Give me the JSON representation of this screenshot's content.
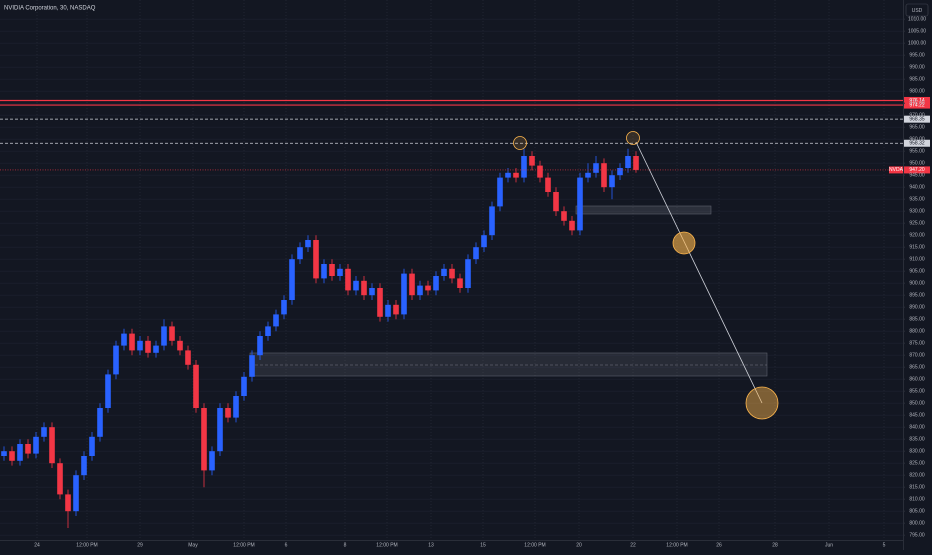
{
  "chart_data": {
    "type": "candlestick",
    "title": "NVIDIA Corporation, 30, NASDAQ",
    "currency": "USD",
    "symbol": "NVDA",
    "up_color": "#2962ff",
    "down_color": "#f23645",
    "grid": true,
    "xlim": [
      -0.5,
      112.375
    ],
    "ylim": [
      793,
      1018
    ],
    "xticks": [
      {
        "value": 4.125,
        "label": "24"
      },
      {
        "value": 10.375,
        "label": "12:00 PM"
      },
      {
        "value": 17,
        "label": "29"
      },
      {
        "value": 23.625,
        "label": "May"
      },
      {
        "value": 30,
        "label": "12:00 PM"
      },
      {
        "value": 35.25,
        "label": "6"
      },
      {
        "value": 42.625,
        "label": "8"
      },
      {
        "value": 47.875,
        "label": "12:00 PM"
      },
      {
        "value": 53.375,
        "label": "13"
      },
      {
        "value": 59.875,
        "label": "15"
      },
      {
        "value": 66.375,
        "label": "12:00 PM"
      },
      {
        "value": 71.875,
        "label": "20"
      },
      {
        "value": 78.625,
        "label": "22"
      },
      {
        "value": 84.125,
        "label": "12:00 PM"
      },
      {
        "value": 89.375,
        "label": "26"
      },
      {
        "value": 96.375,
        "label": "28"
      },
      {
        "value": 103.125,
        "label": "Jun"
      },
      {
        "value": 110,
        "label": "5"
      }
    ],
    "yticks": [
      {
        "value": 795,
        "label": "795.00"
      },
      {
        "value": 800,
        "label": "800.00"
      },
      {
        "value": 805,
        "label": "805.00"
      },
      {
        "value": 810,
        "label": "810.00"
      },
      {
        "value": 815,
        "label": "815.00"
      },
      {
        "value": 820,
        "label": "820.00"
      },
      {
        "value": 825,
        "label": "825.00"
      },
      {
        "value": 830,
        "label": "830.00"
      },
      {
        "value": 835,
        "label": "835.00"
      },
      {
        "value": 840,
        "label": "840.00"
      },
      {
        "value": 845,
        "label": "845.00"
      },
      {
        "value": 850,
        "label": "850.00"
      },
      {
        "value": 855,
        "label": "855.00"
      },
      {
        "value": 860,
        "label": "860.00"
      },
      {
        "value": 865,
        "label": "865.00"
      },
      {
        "value": 870,
        "label": "870.00"
      },
      {
        "value": 875,
        "label": "875.00"
      },
      {
        "value": 880,
        "label": "880.00"
      },
      {
        "value": 885,
        "label": "885.00"
      },
      {
        "value": 890,
        "label": "890.00"
      },
      {
        "value": 895,
        "label": "895.00"
      },
      {
        "value": 900,
        "label": "900.00"
      },
      {
        "value": 905,
        "label": "905.00"
      },
      {
        "value": 910,
        "label": "910.00"
      },
      {
        "value": 915,
        "label": "915.00"
      },
      {
        "value": 920,
        "label": "920.00"
      },
      {
        "value": 925,
        "label": "925.00"
      },
      {
        "value": 930,
        "label": "930.00"
      },
      {
        "value": 935,
        "label": "935.00"
      },
      {
        "value": 940,
        "label": "940.00"
      },
      {
        "value": 945,
        "label": "945.00"
      },
      {
        "value": 950,
        "label": "950.00"
      },
      {
        "value": 955,
        "label": "955.00"
      },
      {
        "value": 960,
        "label": "960.00"
      },
      {
        "value": 965,
        "label": "965.00"
      },
      {
        "value": 970,
        "label": "970.00"
      },
      {
        "value": 975,
        "label": "975.00"
      },
      {
        "value": 980,
        "label": "980.00"
      },
      {
        "value": 985,
        "label": "985.00"
      },
      {
        "value": 990,
        "label": "990.00"
      },
      {
        "value": 995,
        "label": "995.00"
      },
      {
        "value": 1000,
        "label": "1000.00"
      },
      {
        "value": 1005,
        "label": "1005.00"
      },
      {
        "value": 1010,
        "label": "1010.00"
      }
    ],
    "open": [
      828,
      830,
      826,
      833,
      829,
      836,
      840,
      825,
      812,
      805,
      820,
      828,
      836,
      848,
      862,
      874,
      879,
      872,
      876,
      871,
      874,
      882,
      876,
      872,
      866,
      848,
      822,
      830,
      848,
      844,
      853,
      861,
      870,
      878,
      882,
      887,
      893,
      910,
      915,
      918,
      902,
      908,
      903,
      906,
      897,
      901,
      895,
      898,
      886,
      891,
      887,
      904,
      895,
      899,
      897,
      903,
      906,
      902,
      898,
      910,
      915,
      920,
      932,
      944,
      946,
      944,
      953,
      949,
      944,
      938,
      930,
      926,
      922,
      944,
      946,
      950,
      940,
      945,
      948,
      953
    ],
    "high": [
      832,
      832,
      835,
      835,
      838,
      842,
      842,
      827,
      814,
      822,
      830,
      838,
      850,
      864,
      876,
      881,
      881,
      878,
      878,
      876,
      885,
      884,
      878,
      874,
      868,
      850,
      832,
      850,
      850,
      855,
      863,
      872,
      880,
      884,
      889,
      895,
      912,
      917,
      920,
      920,
      910,
      910,
      908,
      908,
      903,
      903,
      900,
      900,
      893,
      893,
      906,
      906,
      901,
      901,
      905,
      908,
      908,
      904,
      912,
      917,
      922,
      934,
      946,
      948,
      948,
      956,
      955,
      951,
      946,
      940,
      932,
      928,
      946,
      950,
      953,
      952,
      947,
      950,
      956,
      955
    ],
    "low": [
      826,
      824,
      824,
      827,
      827,
      834,
      823,
      810,
      798,
      803,
      818,
      826,
      834,
      846,
      860,
      872,
      870,
      870,
      869,
      869,
      872,
      874,
      870,
      864,
      846,
      815,
      820,
      828,
      842,
      842,
      851,
      859,
      868,
      876,
      880,
      885,
      891,
      908,
      913,
      900,
      900,
      901,
      901,
      895,
      895,
      893,
      893,
      884,
      884,
      885,
      885,
      893,
      893,
      895,
      895,
      901,
      900,
      896,
      896,
      908,
      913,
      918,
      930,
      942,
      942,
      942,
      947,
      942,
      936,
      928,
      924,
      920,
      920,
      942,
      944,
      938,
      935,
      943,
      946,
      946
    ],
    "close": [
      830,
      826,
      833,
      829,
      836,
      840,
      825,
      812,
      805,
      820,
      828,
      836,
      848,
      862,
      874,
      879,
      872,
      876,
      871,
      874,
      882,
      876,
      872,
      866,
      848,
      822,
      830,
      848,
      844,
      853,
      861,
      870,
      878,
      882,
      887,
      893,
      910,
      915,
      918,
      902,
      908,
      903,
      906,
      897,
      901,
      895,
      898,
      886,
      891,
      887,
      904,
      895,
      899,
      897,
      903,
      906,
      902,
      898,
      910,
      915,
      920,
      932,
      944,
      946,
      944,
      953,
      949,
      944,
      938,
      930,
      926,
      922,
      944,
      946,
      950,
      940,
      945,
      948,
      953,
      947.2
    ],
    "price_lines": [
      {
        "value": 976.14,
        "color": "#f23645",
        "style": "solid"
      },
      {
        "value": 974.22,
        "color": "#f23645",
        "style": "solid"
      },
      {
        "value": 968.35,
        "color": "#d1d4dc",
        "style": "dashed"
      },
      {
        "value": 958.32,
        "color": "#d1d4dc",
        "style": "dashed"
      },
      {
        "value": 947.2,
        "label": "947.20",
        "color": "#f23645",
        "style": "dotted",
        "current": true
      }
    ]
  }
}
